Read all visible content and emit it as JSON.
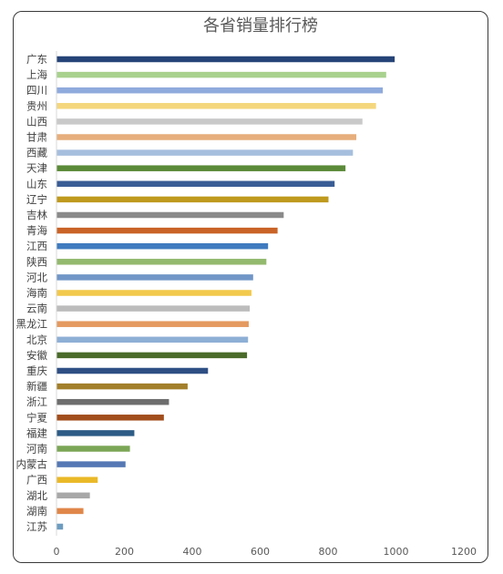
{
  "chart_data": {
    "type": "bar",
    "orientation": "horizontal",
    "title": "各省销量排行榜",
    "categories": [
      "广东",
      "上海",
      "四川",
      "贵州",
      "山西",
      "甘肃",
      "西藏",
      "天津",
      "山东",
      "辽宁",
      "吉林",
      "青海",
      "江西",
      "陕西",
      "河北",
      "海南",
      "云南",
      "黑龙江",
      "北京",
      "安徽",
      "重庆",
      "新疆",
      "浙江",
      "宁夏",
      "福建",
      "河南",
      "内蒙古",
      "广西",
      "湖北",
      "湖南",
      "江苏"
    ],
    "values": [
      995,
      970,
      960,
      940,
      900,
      882,
      872,
      850,
      818,
      800,
      668,
      650,
      622,
      617,
      578,
      573,
      568,
      565,
      563,
      560,
      445,
      385,
      330,
      315,
      228,
      215,
      202,
      120,
      97,
      78,
      18
    ],
    "colors": [
      "#264478",
      "#A9D18E",
      "#8FAADC",
      "#F4D77D",
      "#C9C9C9",
      "#E6AE7C",
      "#A6BFDE",
      "#5B8A38",
      "#3A5D95",
      "#BF9A1E",
      "#8A8A8A",
      "#C96327",
      "#3F7BBF",
      "#93B96E",
      "#7096C7",
      "#F2C94C",
      "#BCBCBC",
      "#E49A60",
      "#8EAFD5",
      "#4A6B2A",
      "#2F4F84",
      "#A27F2A",
      "#6E6E6E",
      "#A24D1C",
      "#2D5C86",
      "#7BA656",
      "#5578B4",
      "#EAB928",
      "#A8A8A8",
      "#E0874A",
      "#6D9CC0"
    ],
    "xticks": [
      0,
      200,
      400,
      600,
      800,
      1000,
      1200
    ],
    "xlim": [
      0,
      1200
    ],
    "grid": false
  }
}
